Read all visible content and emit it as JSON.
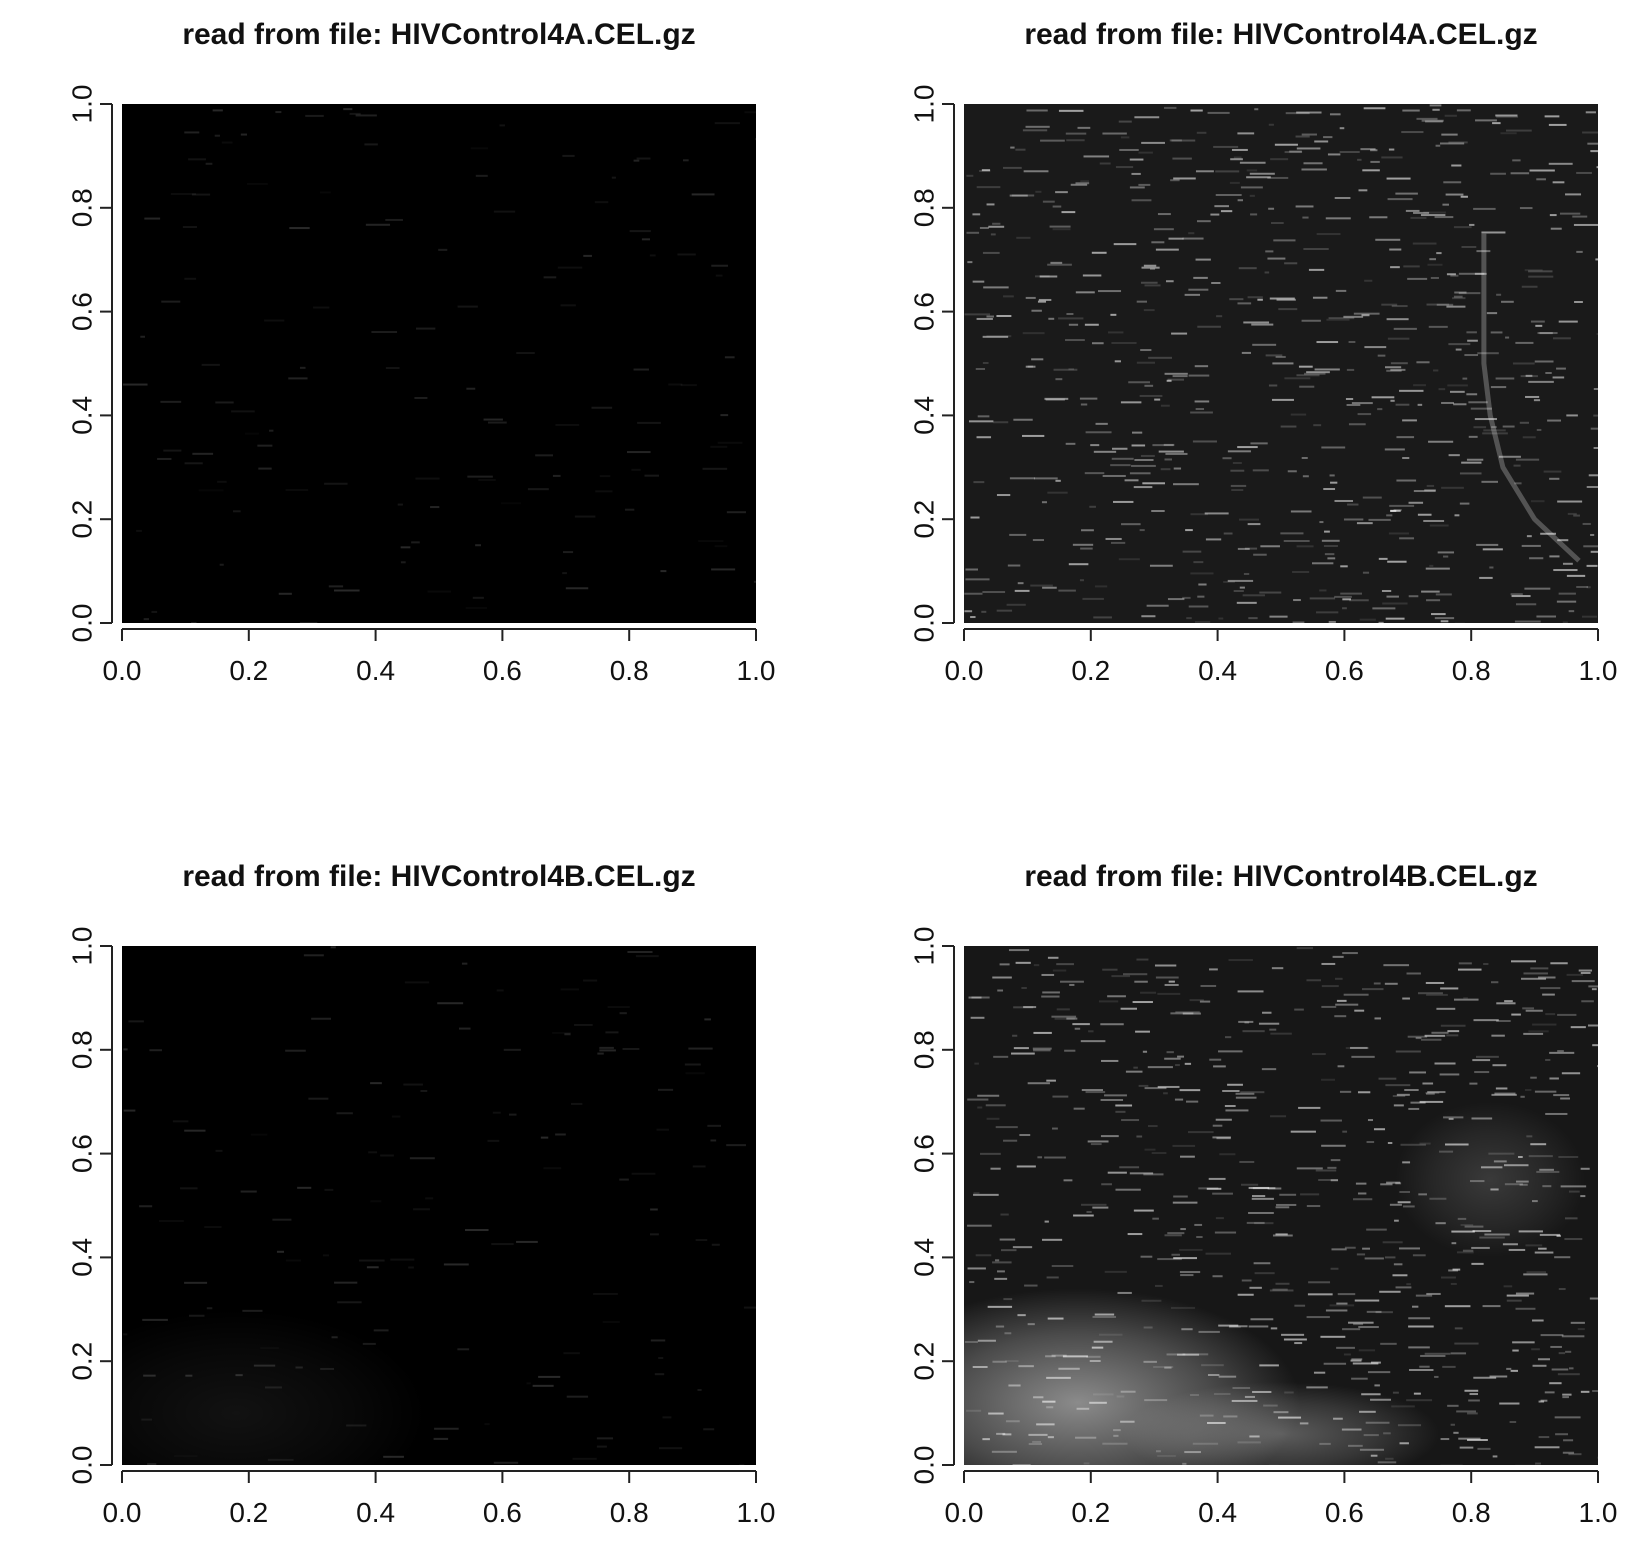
{
  "figure": {
    "panel_count": 4,
    "layout": "2x2 grid"
  },
  "chart_data": [
    {
      "type": "heatmap",
      "title": "read from file: HIVControl4A.CEL.gz",
      "xlabel": "",
      "ylabel": "",
      "xlim": [
        0,
        1
      ],
      "ylim": [
        0,
        1
      ],
      "x_ticks": [
        "0.0",
        "0.2",
        "0.4",
        "0.6",
        "0.8",
        "1.0"
      ],
      "y_ticks": [
        "0.0",
        "0.2",
        "0.4",
        "0.6",
        "0.8",
        "1.0"
      ],
      "colormap": "grayscale",
      "background_color": "#000000",
      "grid": false,
      "intensity_overall": 0.04,
      "speckle_density": 0.15,
      "artifacts": []
    },
    {
      "type": "heatmap",
      "title": "read from file: HIVControl4A.CEL.gz",
      "xlabel": "",
      "ylabel": "",
      "xlim": [
        0,
        1
      ],
      "ylim": [
        0,
        1
      ],
      "x_ticks": [
        "0.0",
        "0.2",
        "0.4",
        "0.6",
        "0.8",
        "1.0"
      ],
      "y_ticks": [
        "0.0",
        "0.2",
        "0.4",
        "0.6",
        "0.8",
        "1.0"
      ],
      "colormap": "grayscale",
      "background_color": "#1a1a1a",
      "grid": false,
      "intensity_overall": 0.15,
      "speckle_density": 0.75,
      "artifacts": [
        {
          "kind": "curved-streak",
          "x": [
            0.82,
            0.82,
            0.83,
            0.85,
            0.9,
            0.97
          ],
          "y": [
            0.75,
            0.5,
            0.4,
            0.3,
            0.2,
            0.12
          ],
          "strength": 0.25
        }
      ]
    },
    {
      "type": "heatmap",
      "title": "read from file: HIVControl4B.CEL.gz",
      "xlabel": "",
      "ylabel": "",
      "xlim": [
        0,
        1
      ],
      "ylim": [
        0,
        1
      ],
      "x_ticks": [
        "0.0",
        "0.2",
        "0.4",
        "0.6",
        "0.8",
        "1.0"
      ],
      "y_ticks": [
        "0.0",
        "0.2",
        "0.4",
        "0.6",
        "0.8",
        "1.0"
      ],
      "colormap": "grayscale",
      "background_color": "#000000",
      "grid": false,
      "intensity_overall": 0.04,
      "speckle_density": 0.15,
      "artifacts": [
        {
          "kind": "diffuse-blob",
          "cx": 0.18,
          "cy": 0.1,
          "rx": 0.3,
          "ry": 0.2,
          "strength": 0.07
        }
      ]
    },
    {
      "type": "heatmap",
      "title": "read from file: HIVControl4B.CEL.gz",
      "xlabel": "",
      "ylabel": "",
      "xlim": [
        0,
        1
      ],
      "ylim": [
        0,
        1
      ],
      "x_ticks": [
        "0.0",
        "0.2",
        "0.4",
        "0.6",
        "0.8",
        "1.0"
      ],
      "y_ticks": [
        "0.0",
        "0.2",
        "0.4",
        "0.6",
        "0.8",
        "1.0"
      ],
      "colormap": "grayscale",
      "background_color": "#171717",
      "grid": false,
      "intensity_overall": 0.15,
      "speckle_density": 0.75,
      "artifacts": [
        {
          "kind": "diffuse-blob",
          "cx": 0.18,
          "cy": 0.12,
          "rx": 0.35,
          "ry": 0.22,
          "strength": 0.5
        },
        {
          "kind": "diffuse-blob",
          "cx": 0.5,
          "cy": 0.06,
          "rx": 0.25,
          "ry": 0.1,
          "strength": 0.3
        },
        {
          "kind": "diffuse-blob",
          "cx": 0.83,
          "cy": 0.55,
          "rx": 0.15,
          "ry": 0.15,
          "strength": 0.15
        }
      ]
    }
  ]
}
